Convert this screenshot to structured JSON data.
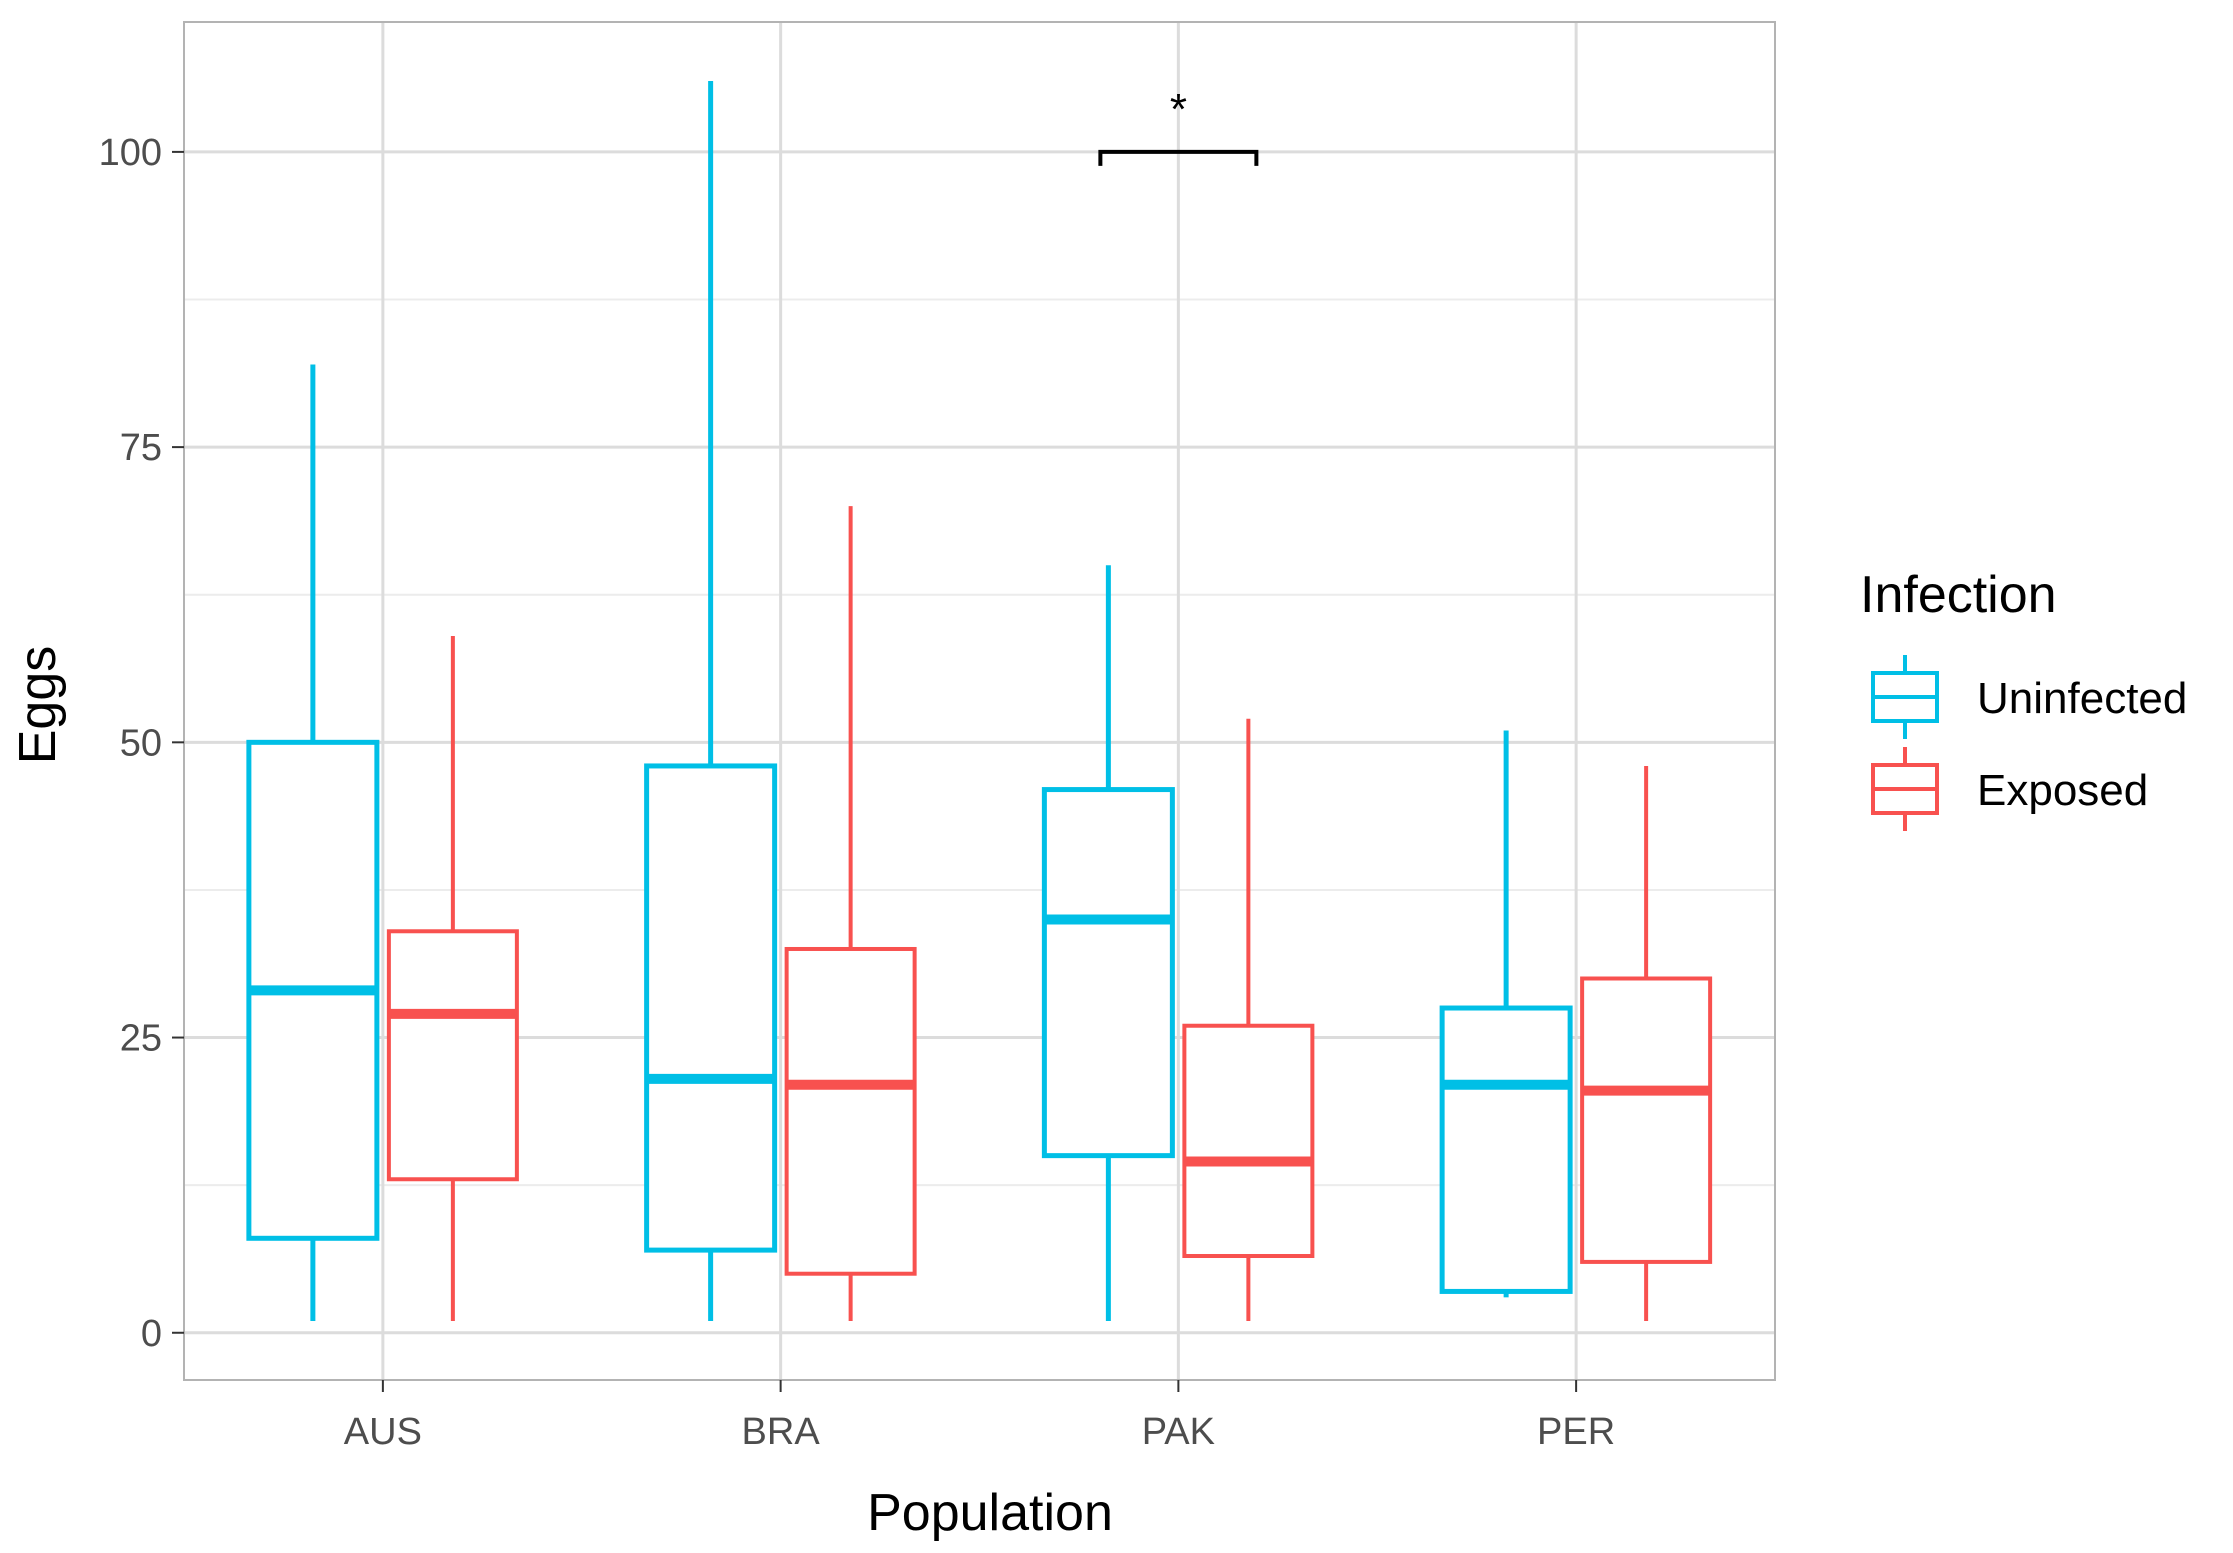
{
  "chart_data": {
    "type": "boxplot",
    "title": "",
    "xlabel": "Population",
    "ylabel": "Eggs",
    "ylim": [
      -4,
      111
    ],
    "yticks": [
      0,
      25,
      50,
      75,
      100
    ],
    "ytick_labels": [
      "0",
      "25",
      "50",
      "75",
      "100"
    ],
    "categories": [
      "AUS",
      "BRA",
      "PAK",
      "PER"
    ],
    "grid": true,
    "legend": {
      "title": "Infection",
      "position": "right"
    },
    "series": [
      {
        "name": "Uninfected",
        "color": "#00BFE6",
        "boxes": [
          {
            "min": 1,
            "q1": 8,
            "median": 29,
            "q3": 50,
            "max": 82
          },
          {
            "min": 1,
            "q1": 7,
            "median": 21.5,
            "q3": 48,
            "max": 106
          },
          {
            "min": 1,
            "q1": 15,
            "median": 35,
            "q3": 46,
            "max": 65
          },
          {
            "min": 3,
            "q1": 3.5,
            "median": 21,
            "q3": 27.5,
            "max": 51
          }
        ]
      },
      {
        "name": "Exposed",
        "color": "#F8514F",
        "boxes": [
          {
            "min": 1,
            "q1": 13,
            "median": 27,
            "q3": 34,
            "max": 59
          },
          {
            "min": 1,
            "q1": 5,
            "median": 21,
            "q3": 32.5,
            "max": 70
          },
          {
            "min": 1,
            "q1": 6.5,
            "median": 14.5,
            "q3": 26,
            "max": 52
          },
          {
            "min": 1,
            "q1": 6,
            "median": 20.5,
            "q3": 30,
            "max": 48
          }
        ]
      }
    ],
    "annotations": [
      {
        "type": "significance-bracket",
        "category": "PAK",
        "label": "*",
        "y": 100
      }
    ]
  }
}
